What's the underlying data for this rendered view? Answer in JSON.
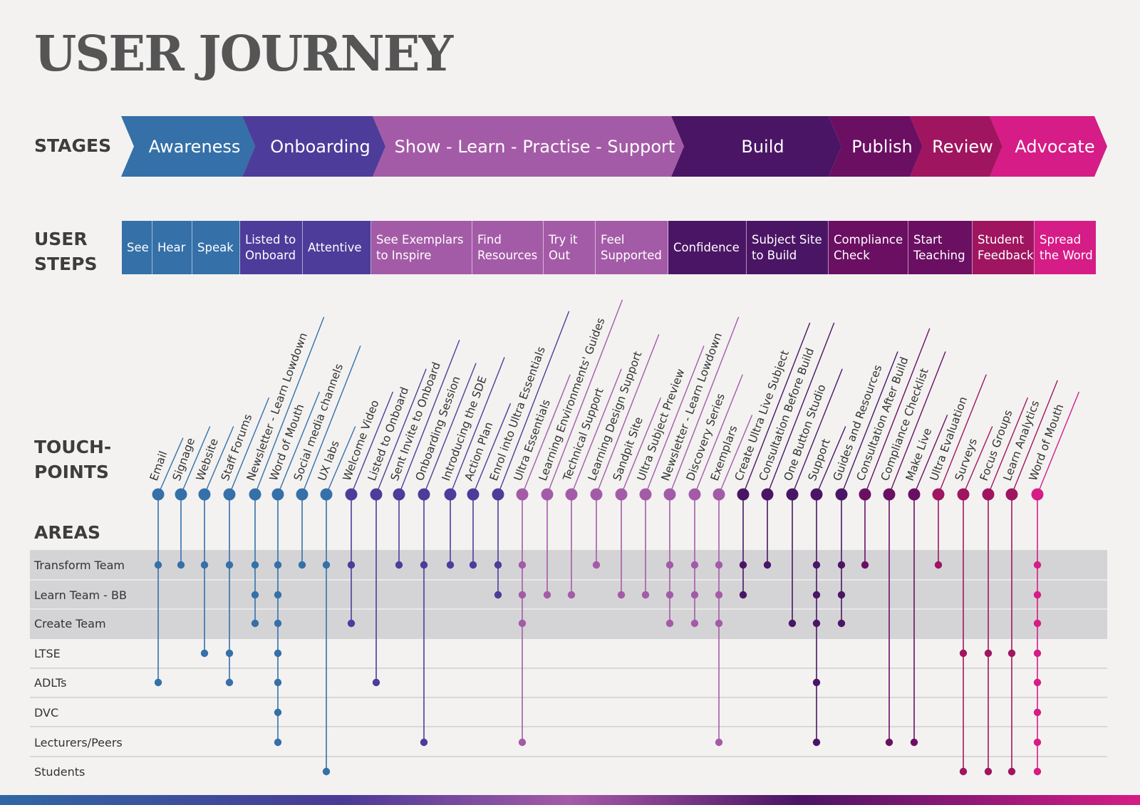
{
  "title": "USER JOURNEY",
  "labels": {
    "stages": "STAGES",
    "user_steps": "USER\nSTEPS",
    "touchpoints": "TOUCH-\nPOINTS",
    "areas": "AREAS"
  },
  "colors": {
    "blue": "#3570a8",
    "indigo": "#4d3c9a",
    "orchid": "#a45ba7",
    "purple": "#4b1565",
    "plum": "#6b0f63",
    "crimson": "#a0155f",
    "magenta": "#d61c86",
    "area_band": "#d4d4d6",
    "background": "#f3f2f1"
  },
  "stages": [
    {
      "label": "Awareness",
      "color": "#3570a8"
    },
    {
      "label": "Onboarding",
      "color": "#4d3c9a"
    },
    {
      "label": "Show - Learn - Practise - Support",
      "color": "#a45ba7"
    },
    {
      "label": "Build",
      "color": "#4b1565"
    },
    {
      "label": "Publish",
      "color": "#6b0f63"
    },
    {
      "label": "Review",
      "color": "#a0155f"
    },
    {
      "label": "Advocate",
      "color": "#d61c86"
    }
  ],
  "user_steps": [
    {
      "label": "See",
      "color": "#3570a8"
    },
    {
      "label": "Hear",
      "color": "#3570a8"
    },
    {
      "label": "Speak",
      "color": "#3570a8"
    },
    {
      "label": "Listed to\nOnboard",
      "color": "#4d3c9a"
    },
    {
      "label": "Attentive",
      "color": "#4d3c9a"
    },
    {
      "label": "See Exemplars\nto Inspire",
      "color": "#a45ba7"
    },
    {
      "label": "Find\nResources",
      "color": "#a45ba7"
    },
    {
      "label": "Try it\nOut",
      "color": "#a45ba7"
    },
    {
      "label": "Feel\nSupported",
      "color": "#a45ba7"
    },
    {
      "label": "Confidence",
      "color": "#4b1565"
    },
    {
      "label": "Subject Site\nto Build",
      "color": "#4b1565"
    },
    {
      "label": "Compliance\nCheck",
      "color": "#6b0f63"
    },
    {
      "label": "Start\nTeaching",
      "color": "#6b0f63"
    },
    {
      "label": "Student\nFeedback",
      "color": "#a0155f"
    },
    {
      "label": "Spread\nthe Word",
      "color": "#d61c86"
    }
  ],
  "areas": [
    "Transform Team",
    "Learn Team - BB",
    "Create Team",
    "LTSE",
    "ADLTs",
    "DVC",
    "Lecturers/Peers",
    "Students"
  ],
  "touchpoints": [
    {
      "label": "Email",
      "color": "#3570a8",
      "areas": [
        0,
        4
      ]
    },
    {
      "label": "Signage",
      "color": "#3570a8",
      "areas": [
        0
      ]
    },
    {
      "label": "Website",
      "color": "#3570a8",
      "areas": [
        0,
        3
      ]
    },
    {
      "label": "Staff Forums",
      "color": "#3570a8",
      "areas": [
        0,
        3,
        4
      ]
    },
    {
      "label": "Newsletter - Learn Lowdown",
      "color": "#3570a8",
      "areas": [
        0,
        1,
        2
      ]
    },
    {
      "label": "Word of Mouth",
      "color": "#3570a8",
      "areas": [
        0,
        1,
        2,
        3,
        4,
        5,
        6
      ]
    },
    {
      "label": "Social media channels",
      "color": "#3570a8",
      "areas": [
        0
      ]
    },
    {
      "label": "UX labs",
      "color": "#3570a8",
      "areas": [
        0,
        7
      ]
    },
    {
      "label": "Welcome Video",
      "color": "#4d3c9a",
      "areas": [
        0,
        2
      ]
    },
    {
      "label": "Listed to Onboard",
      "color": "#4d3c9a",
      "areas": [
        4
      ]
    },
    {
      "label": "Sent Invite to Onboard",
      "color": "#4d3c9a",
      "areas": [
        0
      ]
    },
    {
      "label": "Onboarding Session",
      "color": "#4d3c9a",
      "areas": [
        0,
        6
      ]
    },
    {
      "label": "Introducing the SDE",
      "color": "#4d3c9a",
      "areas": [
        0
      ]
    },
    {
      "label": "Action Plan",
      "color": "#4d3c9a",
      "areas": [
        0
      ]
    },
    {
      "label": "Enrol into Ultra Essentials",
      "color": "#4d3c9a",
      "areas": [
        0,
        1
      ]
    },
    {
      "label": "Ultra Essentials",
      "color": "#a45ba7",
      "areas": [
        0,
        1,
        2,
        6
      ]
    },
    {
      "label": "Learning Environments' Guides",
      "color": "#a45ba7",
      "areas": [
        1
      ]
    },
    {
      "label": "Technical Support",
      "color": "#a45ba7",
      "areas": [
        1
      ]
    },
    {
      "label": "Learning Design Support",
      "color": "#a45ba7",
      "areas": [
        0
      ]
    },
    {
      "label": "Sandpit Site",
      "color": "#a45ba7",
      "areas": [
        1
      ]
    },
    {
      "label": "Ultra Subject Preview",
      "color": "#a45ba7",
      "areas": [
        1
      ]
    },
    {
      "label": "Newsletter - Learn Lowdown",
      "color": "#a45ba7",
      "areas": [
        0,
        1,
        2
      ]
    },
    {
      "label": "Discovery Series",
      "color": "#a45ba7",
      "areas": [
        0,
        1,
        2
      ]
    },
    {
      "label": "Exemplars",
      "color": "#a45ba7",
      "areas": [
        0,
        1,
        2,
        6
      ]
    },
    {
      "label": "Create Ultra Live Subject",
      "color": "#4b1565",
      "areas": [
        0,
        1
      ]
    },
    {
      "label": "Consultation Before Build",
      "color": "#4b1565",
      "areas": [
        0
      ]
    },
    {
      "label": "One Button Studio",
      "color": "#4b1565",
      "areas": [
        2
      ]
    },
    {
      "label": "Support",
      "color": "#4b1565",
      "areas": [
        0,
        1,
        2,
        4,
        6
      ]
    },
    {
      "label": "Guides and Resources",
      "color": "#4b1565",
      "areas": [
        0,
        1,
        2
      ]
    },
    {
      "label": "Consultation After Build",
      "color": "#6b0f63",
      "areas": [
        0
      ]
    },
    {
      "label": "Compliance Checklist",
      "color": "#6b0f63",
      "areas": [
        6
      ]
    },
    {
      "label": "Make Live",
      "color": "#6b0f63",
      "areas": [
        6
      ]
    },
    {
      "label": "Ultra Evaluation",
      "color": "#a0155f",
      "areas": [
        0
      ]
    },
    {
      "label": "Surveys",
      "color": "#a0155f",
      "areas": [
        3,
        7
      ]
    },
    {
      "label": "Focus Groups",
      "color": "#a0155f",
      "areas": [
        3,
        7
      ]
    },
    {
      "label": "Learn Analytics",
      "color": "#a0155f",
      "areas": [
        3,
        7
      ]
    },
    {
      "label": "Word of Mouth",
      "color": "#d61c86",
      "areas": [
        0,
        1,
        2,
        3,
        4,
        5,
        6,
        7
      ]
    }
  ]
}
